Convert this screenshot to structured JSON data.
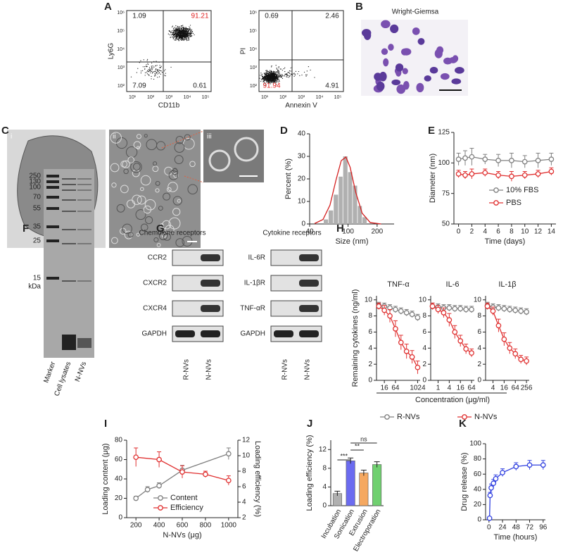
{
  "panel_labels": [
    "A",
    "B",
    "C",
    "D",
    "E",
    "F",
    "G",
    "H",
    "I",
    "J",
    "K"
  ],
  "flow": {
    "ticks": [
      "10¹",
      "10²",
      "10³",
      "10⁴",
      "10⁵",
      "10⁶"
    ],
    "highlight_color": "#e02020",
    "plots": [
      {
        "x_label": "CD11b",
        "y_label": "Ly6G",
        "quadrants": [
          1.09,
          91.21,
          7.09,
          0.61
        ],
        "highlight": 1
      },
      {
        "x_label": "Annexin V",
        "y_label": "PI",
        "quadrants": [
          0.69,
          2.46,
          91.94,
          4.91
        ],
        "highlight": 2
      }
    ]
  },
  "microscopy": {
    "stain": "Wright-Giemsa",
    "subpanels": [
      "i",
      "ii",
      "iii"
    ]
  },
  "gel": {
    "markers": [
      "250",
      "130",
      "100",
      "70",
      "55",
      "35",
      "25",
      "15"
    ],
    "unit": "kDa",
    "lanes": [
      "Marker",
      "Cell lysates",
      "N-NVs"
    ]
  },
  "blots": {
    "groups": [
      "Chemokine receptors",
      "Cytokine receptors"
    ],
    "rows": [
      [
        "CCR2",
        "CXCR2",
        "CXCR4",
        "GAPDH"
      ],
      [
        "IL-6R",
        "IL-1βR",
        "TNF-αR",
        "GAPDH"
      ]
    ],
    "lanes": [
      "R-NVs",
      "N-NVs"
    ]
  },
  "chart_data": [
    {
      "type": "histogram",
      "x_label": "Size (nm)",
      "y_label": "Percent (%)",
      "xscale": "log",
      "xlim": [
        40,
        300
      ],
      "xticks": [
        40,
        100,
        200
      ],
      "ylim": [
        0,
        40
      ],
      "yticks": [
        0,
        10,
        20,
        30,
        40
      ],
      "color": "#b0b0b0",
      "bins": [
        56,
        63,
        71,
        80,
        89,
        100,
        112,
        126,
        141,
        158
      ],
      "counts": [
        2,
        6,
        13,
        21,
        30,
        23,
        17,
        8,
        3
      ],
      "fit": {
        "color": "#d42020",
        "x": [
          45,
          55,
          65,
          75,
          85,
          95,
          105,
          120,
          140,
          170,
          220
        ],
        "values": [
          0.2,
          2.0,
          8.4,
          19.5,
          28.1,
          29.7,
          25.2,
          14.1,
          4.8,
          0.6,
          0
        ]
      }
    },
    {
      "type": "line",
      "x_label": "Time (days)",
      "y_label": "Diameter (nm)",
      "xlim": [
        -0.7,
        14.7
      ],
      "xticks": [
        0,
        2,
        4,
        6,
        8,
        10,
        12,
        14
      ],
      "ylim": [
        50,
        125
      ],
      "yticks": [
        50,
        75,
        100,
        125
      ],
      "legend": "lower right",
      "x": [
        0,
        1,
        2,
        4,
        6,
        8,
        10,
        12,
        14
      ],
      "series": [
        {
          "name": "10% FBS",
          "color": "#808080",
          "values": [
            103,
            104,
            105,
            103,
            102,
            102,
            101,
            102,
            103
          ],
          "errors": [
            5,
            6,
            7,
            4,
            5,
            6,
            5,
            6,
            5
          ]
        },
        {
          "name": "PBS",
          "color": "#e03030",
          "values": [
            91,
            90,
            91,
            92,
            90,
            89,
            90,
            91,
            93
          ],
          "errors": [
            3,
            3,
            4,
            3,
            3,
            4,
            3,
            3,
            3
          ]
        }
      ]
    },
    {
      "type": "line",
      "title": "TNF-α",
      "y_label": "Remaining cytokines (ng/ml)",
      "xscale": "log",
      "xlim": [
        6,
        1400
      ],
      "xticks": [
        16,
        64,
        1024
      ],
      "ylim": [
        0,
        10.5
      ],
      "yticks": [
        0,
        2,
        4,
        6,
        8,
        10
      ],
      "legend": "below",
      "x": [
        8,
        16,
        32,
        64,
        128,
        256,
        512,
        1024
      ],
      "series": [
        {
          "name": "R-NVs",
          "color": "#808080",
          "values": [
            9.3,
            9.2,
            9.0,
            8.8,
            8.6,
            8.4,
            8.2,
            7.8
          ],
          "errors": [
            0.4,
            0.4,
            0.4,
            0.4,
            0.4,
            0.4,
            0.4,
            0.4
          ]
        },
        {
          "name": "N-NVs",
          "color": "#e03030",
          "values": [
            9.2,
            8.7,
            8.0,
            6.4,
            4.7,
            3.6,
            2.9,
            1.6
          ],
          "errors": [
            0.4,
            0.6,
            0.8,
            1.0,
            0.9,
            0.9,
            0.8,
            0.8
          ]
        }
      ]
    },
    {
      "type": "line",
      "title": "IL-6",
      "x_label": "Concentration (μg/ml)",
      "xscale": "log",
      "xlim": [
        0.4,
        90
      ],
      "xticks": [
        1,
        4,
        16,
        64
      ],
      "ylim": [
        0,
        10.5
      ],
      "yticks": [
        0,
        2,
        4,
        6,
        8,
        10
      ],
      "x": [
        0.5,
        1,
        2,
        4,
        8,
        16,
        32,
        64
      ],
      "series": [
        {
          "name": "R-NVs",
          "color": "#808080",
          "values": [
            9.2,
            9.1,
            9.0,
            9.0,
            8.9,
            8.9,
            8.8,
            8.8
          ],
          "errors": [
            0.4,
            0.4,
            0.4,
            0.4,
            0.4,
            0.4,
            0.4,
            0.4
          ]
        },
        {
          "name": "N-NVs",
          "color": "#e03030",
          "values": [
            9.2,
            8.8,
            8.4,
            7.5,
            6.0,
            4.9,
            3.9,
            3.4
          ],
          "errors": [
            0.4,
            0.5,
            0.6,
            0.8,
            0.8,
            0.7,
            0.6,
            0.5
          ]
        }
      ]
    },
    {
      "type": "line",
      "title": "IL-1β",
      "xscale": "log",
      "xlim": [
        1.6,
        360
      ],
      "xticks": [
        4,
        16,
        64,
        256
      ],
      "ylim": [
        0,
        10.5
      ],
      "yticks": [
        0,
        2,
        4,
        6,
        8,
        10
      ],
      "x": [
        2,
        4,
        8,
        16,
        32,
        64,
        128,
        256
      ],
      "series": [
        {
          "name": "R-NVs",
          "color": "#808080",
          "values": [
            9.3,
            9.1,
            9.0,
            8.9,
            8.8,
            8.7,
            8.6,
            8.5
          ],
          "errors": [
            0.4,
            0.4,
            0.4,
            0.4,
            0.4,
            0.4,
            0.4,
            0.4
          ]
        },
        {
          "name": "N-NVs",
          "color": "#e03030",
          "values": [
            9.2,
            8.6,
            6.8,
            5.1,
            4.0,
            3.3,
            2.6,
            2.4
          ],
          "errors": [
            0.4,
            0.5,
            0.8,
            0.8,
            0.7,
            0.6,
            0.5,
            0.5
          ]
        }
      ]
    },
    {
      "type": "line",
      "x_label": "N-NVs (μg)",
      "y_label": "Loading content (μg)",
      "y2_label": "Loading efficiency (%)",
      "xlim": [
        120,
        1080
      ],
      "xticks": [
        200,
        400,
        600,
        800,
        1000
      ],
      "ylim": [
        0,
        80
      ],
      "yticks": [
        0,
        20,
        40,
        60,
        80
      ],
      "y2lim": [
        2,
        12
      ],
      "y2ticks": [
        2,
        4,
        6,
        8,
        10,
        12
      ],
      "legend": "lower left",
      "series": [
        {
          "name": "Content",
          "color": "#808080",
          "x": [
            200,
            300,
            400,
            600,
            1000
          ],
          "values": [
            20,
            29,
            33,
            49,
            66
          ],
          "errors": [
            2,
            3,
            3,
            5,
            6
          ]
        },
        {
          "name": "Efficiency",
          "color": "#e03030",
          "axis": "y2",
          "x": [
            200,
            400,
            600,
            800,
            1000
          ],
          "values": [
            9.8,
            9.5,
            7.9,
            7.6,
            6.8
          ],
          "errors": [
            1.2,
            1,
            0.8,
            0.4,
            0.6
          ]
        }
      ]
    },
    {
      "type": "bar",
      "y_label": "Loading efficiency (%)",
      "ylim": [
        0,
        14
      ],
      "yticks": [
        0,
        4,
        8,
        12
      ],
      "categories": [
        "Incubation",
        "Sonication",
        "Extrusion",
        "Electroporation"
      ],
      "values": [
        2.6,
        9.6,
        7.0,
        8.8
      ],
      "errors": [
        0.5,
        0.6,
        0.6,
        0.6
      ],
      "colors": [
        "#b0b0b0",
        "#6b6bf0",
        "#f5a860",
        "#70d070"
      ],
      "annotations": [
        "***",
        "**",
        "ns"
      ]
    },
    {
      "type": "line",
      "x_label": "Time (hours)",
      "y_label": "Drug release (%)",
      "xlim": [
        -6,
        100
      ],
      "xticks": [
        0,
        24,
        48,
        72,
        96
      ],
      "ylim": [
        0,
        100
      ],
      "yticks": [
        0,
        20,
        40,
        60,
        80,
        100
      ],
      "x": [
        1,
        2,
        4,
        8,
        12,
        24,
        48,
        72,
        96
      ],
      "series": [
        {
          "name": "Drug release",
          "color": "#3040e0",
          "values": [
            2,
            32,
            42,
            48,
            54,
            62,
            70,
            72,
            72
          ],
          "errors": [
            1,
            4,
            5,
            5,
            5,
            5,
            5,
            6,
            6
          ]
        }
      ]
    }
  ]
}
